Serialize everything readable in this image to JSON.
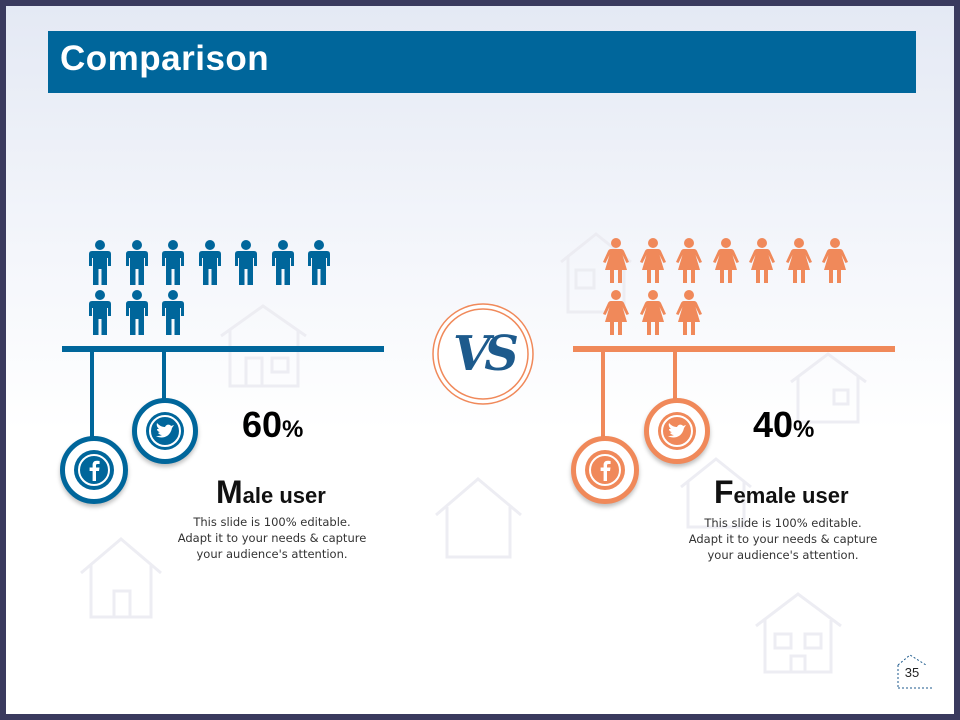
{
  "title": "Comparison",
  "page_number": "35",
  "vs_label": "VS",
  "male": {
    "percent_value": "60",
    "percent_symbol": "%",
    "heading_first": "M",
    "heading_rest": "ale user",
    "description_lines": [
      "This slide is 100% editable.",
      "Adapt it to your needs & capture",
      "your audience's attention."
    ],
    "icon_count": 10,
    "color": "#00669b"
  },
  "female": {
    "percent_value": "40",
    "percent_symbol": "%",
    "heading_first": "F",
    "heading_rest": "emale user",
    "description_lines": [
      "This slide is 100% editable.",
      "Adapt it to your needs & capture",
      "your audience's attention."
    ],
    "icon_count": 10,
    "color": "#f0895a"
  },
  "icons": {
    "male_person": "male-person-icon",
    "female_person": "female-person-icon",
    "facebook": "facebook-icon",
    "twitter": "twitter-icon"
  }
}
